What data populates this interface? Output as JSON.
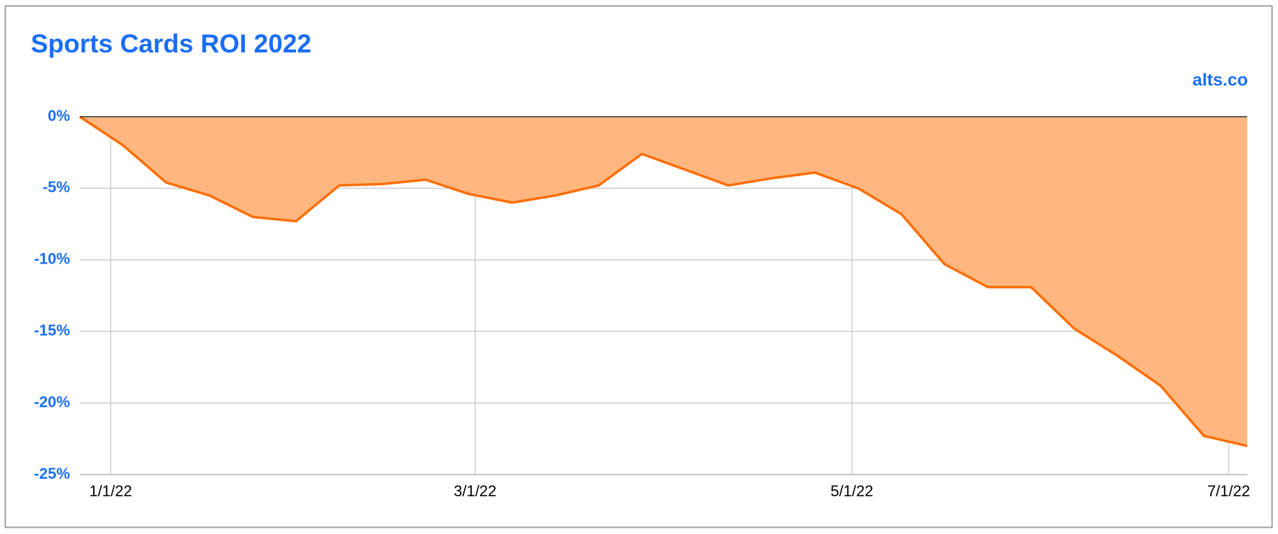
{
  "chart_data": {
    "type": "area",
    "title": "Sports Cards ROI 2022",
    "source": "alts.co",
    "x": [
      "2021-12-27",
      "2022-01-03",
      "2022-01-10",
      "2022-01-17",
      "2022-01-24",
      "2022-01-31",
      "2022-02-07",
      "2022-02-14",
      "2022-02-21",
      "2022-02-28",
      "2022-03-07",
      "2022-03-14",
      "2022-03-21",
      "2022-03-28",
      "2022-04-04",
      "2022-04-11",
      "2022-04-18",
      "2022-04-25",
      "2022-05-02",
      "2022-05-09",
      "2022-05-16",
      "2022-05-23",
      "2022-05-30",
      "2022-06-06",
      "2022-06-13",
      "2022-06-20",
      "2022-06-27",
      "2022-07-04"
    ],
    "series": [
      {
        "name": "Sports Cards ROI",
        "color": "#ff6d01",
        "fill": "#ffb77f",
        "values": [
          0,
          -2,
          -4.6,
          -5.5,
          -7,
          -7.3,
          -4.8,
          -4.7,
          -4.4,
          -5.4,
          -6,
          -5.5,
          -4.8,
          -2.6,
          -3.7,
          -4.8,
          -4.3,
          -3.9,
          -5,
          -6.8,
          -10.3,
          -11.9,
          -11.9,
          -14.8,
          -16.7,
          -18.8,
          -22.3,
          -23
        ]
      }
    ],
    "xlim": [
      "2021-12-27",
      "2022-07-04"
    ],
    "xticks": [
      {
        "value": "2022-01-01",
        "label": "1/1/22"
      },
      {
        "value": "2022-03-01",
        "label": "3/1/22"
      },
      {
        "value": "2022-05-01",
        "label": "5/1/22"
      },
      {
        "value": "2022-07-01",
        "label": "7/1/22"
      }
    ],
    "ylim": [
      -25,
      0
    ],
    "yticks": [
      {
        "value": 0,
        "label": "0%"
      },
      {
        "value": -5,
        "label": "-5%"
      },
      {
        "value": -10,
        "label": "-10%"
      },
      {
        "value": -15,
        "label": "-15%"
      },
      {
        "value": -20,
        "label": "-20%"
      },
      {
        "value": -25,
        "label": "-25%"
      }
    ],
    "grid": true
  }
}
